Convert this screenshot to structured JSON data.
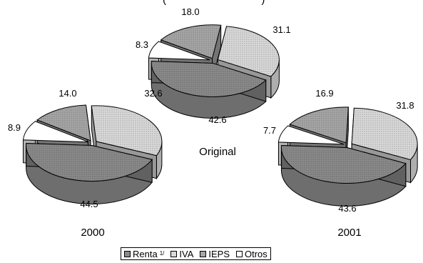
{
  "title_fragment": "(                                )",
  "colors": {
    "Renta": "#8a8a8a",
    "IVA": "#d9d9d9",
    "IEPS": "#a6a6a6",
    "Otros": "#ffffff",
    "edge": "#000000"
  },
  "chart_data": [
    {
      "type": "pie",
      "name": "Original",
      "categories": [
        "Renta",
        "IVA",
        "IEPS",
        "Otros"
      ],
      "values": [
        42.6,
        31.1,
        18.0,
        8.3
      ],
      "labels": [
        "42.6",
        "31.1",
        "18.0",
        "8.3"
      ]
    },
    {
      "type": "pie",
      "name": "2000",
      "categories": [
        "Renta",
        "IVA",
        "IEPS",
        "Otros"
      ],
      "values": [
        44.5,
        32.6,
        14.0,
        8.9
      ],
      "labels": [
        "44.5",
        "32.6",
        "14.0",
        "8.9"
      ]
    },
    {
      "type": "pie",
      "name": "2001",
      "categories": [
        "Renta",
        "IVA",
        "IEPS",
        "Otros"
      ],
      "values": [
        43.6,
        31.8,
        16.9,
        7.7
      ],
      "labels": [
        "43.6",
        "31.8",
        "16.9",
        "7.7"
      ]
    }
  ],
  "legend": {
    "items": [
      {
        "label": "Renta",
        "sup": "1/",
        "key": "Renta"
      },
      {
        "label": "IVA",
        "sup": "",
        "key": "IVA"
      },
      {
        "label": "IEPS",
        "sup": "",
        "key": "IEPS"
      },
      {
        "label": "Otros",
        "sup": "",
        "key": "Otros"
      }
    ]
  }
}
